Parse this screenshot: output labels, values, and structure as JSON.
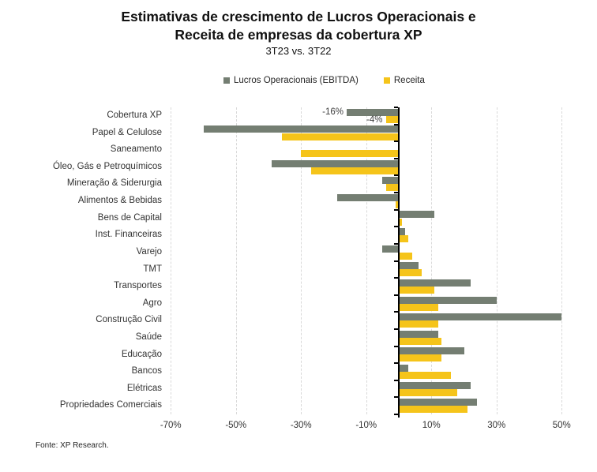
{
  "chart_data": {
    "type": "bar",
    "orientation": "horizontal",
    "title_line1": "Estimativas de crescimento de Lucros Operacionais e",
    "title_line2": "Receita de empresas da cobertura XP",
    "subtitle": "3T23 vs. 3T22",
    "source": "Fonte: XP Research.",
    "categories": [
      "Cobertura XP",
      "Papel & Celulose",
      "Saneamento",
      "Óleo, Gás e Petroquímicos",
      "Mineração & Siderurgia",
      "Alimentos & Bebidas",
      "Bens de Capital",
      "Inst. Financeiras",
      "Varejo",
      "TMT",
      "Transportes",
      "Agro",
      "Construção Civil",
      "Saúde",
      "Educação",
      "Bancos",
      "Elétricas",
      "Propriedades Comerciais"
    ],
    "series": [
      {
        "name": "Lucros Operacionais (EBITDA)",
        "color": "#747E72",
        "values": [
          -16,
          -60,
          0,
          -39,
          -5,
          -19,
          11,
          2,
          -5,
          6,
          22,
          30,
          50,
          12,
          20,
          3,
          22,
          24
        ]
      },
      {
        "name": "Receita",
        "color": "#F5C41A",
        "values": [
          -4,
          -36,
          -30,
          -27,
          -4,
          -1,
          1,
          3,
          4,
          7,
          11,
          12,
          12,
          13,
          13,
          16,
          18,
          21
        ]
      }
    ],
    "data_labels": [
      {
        "category_index": 0,
        "series_index": 0,
        "text": "-16%"
      },
      {
        "category_index": 0,
        "series_index": 1,
        "text": "-4%"
      }
    ],
    "x_tick_values": [
      -70,
      -50,
      -30,
      -10,
      10,
      30,
      50
    ],
    "x_tick_labels": [
      "-70%",
      "-50%",
      "-30%",
      "-10%",
      "10%",
      "30%",
      "50%"
    ],
    "xlim": [
      -70.8,
      51.6
    ],
    "unit": "%",
    "grid": true,
    "legend_position": "top",
    "colors": {
      "gridline": "#d9d9d9",
      "axis": "#000000",
      "text": "#333333",
      "title": "#111111"
    }
  }
}
